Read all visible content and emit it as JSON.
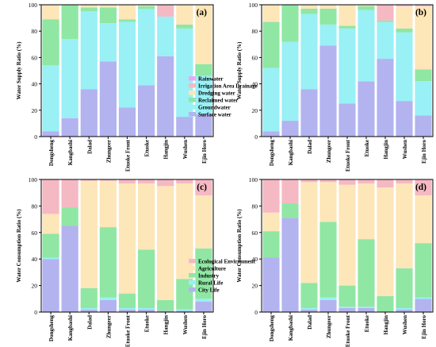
{
  "colors": {
    "surface_water": "#b3b3f0",
    "groundwater": "#99f0f5",
    "reclaimed_water": "#8fe7a3",
    "dredging_water": "#fde6b8",
    "irrigation_drainage": "#f5b9c3",
    "rainwater": "#eca8ee",
    "city_life": "#b3b3f0",
    "rural_life": "#99f0f5",
    "industry": "#8fe7a3",
    "agriculture": "#fde6b8",
    "ecological_environment": "#f5b9c3"
  },
  "chart_data": [
    {
      "type": "bar",
      "stacked": true,
      "panel_label": "(a)",
      "ylabel": "Water Supply Ratio (%)",
      "ylim": [
        0,
        100
      ],
      "yticks": [
        "0",
        "20",
        "40",
        "60",
        "80",
        "100"
      ],
      "categories": [
        "Dongsheng",
        "Kangbashi",
        "Dalad",
        "Zhungeer",
        "Etuoke Front",
        "Etuoke",
        "Hangjin",
        "Wushen",
        "Ejin Horo"
      ],
      "legend_position": "bottom-right",
      "series": [
        {
          "name": "Surface water",
          "color_key": "surface_water",
          "values": [
            4,
            14,
            36,
            57,
            22,
            39,
            61,
            15,
            17
          ]
        },
        {
          "name": "Groundwater",
          "color_key": "groundwater",
          "values": [
            50,
            60,
            59,
            29,
            65,
            58,
            30,
            67,
            29
          ]
        },
        {
          "name": "Reclaimed water",
          "color_key": "reclaimed_water",
          "values": [
            35,
            26,
            3,
            12,
            2,
            2,
            0,
            3,
            9
          ]
        },
        {
          "name": "Dredging water",
          "color_key": "dredging_water",
          "values": [
            11,
            0,
            2,
            2,
            11,
            1,
            0,
            15,
            45
          ]
        },
        {
          "name": "Irrigation Area Drainage",
          "color_key": "irrigation_drainage",
          "values": [
            0,
            0,
            0,
            0,
            0,
            0,
            9,
            0,
            0
          ]
        },
        {
          "name": "Rainwater",
          "color_key": "rainwater",
          "values": [
            0,
            0,
            0,
            0,
            0,
            0,
            0,
            0,
            0
          ]
        }
      ]
    },
    {
      "type": "bar",
      "stacked": true,
      "panel_label": "(b)",
      "ylabel": "Water Supply Ratio (%)",
      "ylim": [
        0,
        100
      ],
      "yticks": [
        "0",
        "20",
        "40",
        "60",
        "80",
        "100"
      ],
      "categories": [
        "Dongsheng",
        "Kangbashi",
        "Dalad",
        "Zhungeer",
        "Etuoke Front",
        "Etuoke",
        "Hangjin",
        "Wushen",
        "Ejin Horo"
      ],
      "series": [
        {
          "name": "Surface water",
          "color_key": "surface_water",
          "values": [
            4,
            12,
            36,
            69,
            25,
            42,
            59,
            27,
            16
          ]
        },
        {
          "name": "Groundwater",
          "color_key": "groundwater",
          "values": [
            48,
            60,
            57,
            16,
            57,
            54,
            28,
            52,
            26
          ]
        },
        {
          "name": "Reclaimed water",
          "color_key": "reclaimed_water",
          "values": [
            35,
            28,
            4,
            12,
            2,
            3,
            1,
            3,
            9
          ]
        },
        {
          "name": "Dredging water",
          "color_key": "dredging_water",
          "values": [
            13,
            0,
            3,
            3,
            16,
            1,
            0,
            17,
            48
          ]
        },
        {
          "name": "Irrigation Area Drainage",
          "color_key": "irrigation_drainage",
          "values": [
            0,
            0,
            0,
            0,
            0,
            0,
            12,
            0,
            0
          ]
        },
        {
          "name": "Rainwater",
          "color_key": "rainwater",
          "values": [
            0,
            0,
            0,
            0,
            0,
            0,
            0,
            1,
            1
          ]
        }
      ]
    },
    {
      "type": "bar",
      "stacked": true,
      "panel_label": "(c)",
      "ylabel": "Water Consumption Ratio (%)",
      "ylim": [
        0,
        100
      ],
      "yticks": [
        "0",
        "20",
        "40",
        "60",
        "80",
        "100"
      ],
      "categories": [
        "Dongsheng",
        "Kangbashi",
        "Dalad",
        "Zhungeer",
        "Etuoke Front",
        "Etuoke",
        "Hangjin",
        "Wushen",
        "Ejin Horo"
      ],
      "legend_position": "bottom-right",
      "series": [
        {
          "name": "City Life",
          "color_key": "city_life",
          "values": [
            40,
            65,
            2,
            9,
            2,
            2,
            1,
            1,
            8
          ]
        },
        {
          "name": "Rural Life",
          "color_key": "rural_life",
          "values": [
            1,
            0,
            1,
            2,
            1,
            1,
            0,
            1,
            2
          ]
        },
        {
          "name": "Industry",
          "color_key": "industry",
          "values": [
            18,
            14,
            15,
            53,
            11,
            44,
            8,
            23,
            38
          ]
        },
        {
          "name": "Agriculture",
          "color_key": "agriculture",
          "values": [
            15,
            0,
            81,
            35,
            83,
            50,
            86,
            72,
            40
          ]
        },
        {
          "name": "Ecological Environment",
          "color_key": "ecological_environment",
          "values": [
            26,
            21,
            1,
            1,
            3,
            3,
            5,
            3,
            12
          ]
        }
      ]
    },
    {
      "type": "bar",
      "stacked": true,
      "panel_label": "(d)",
      "ylabel": "Water Consumption Ratio (%)",
      "ylim": [
        0,
        100
      ],
      "yticks": [
        "0",
        "20",
        "40",
        "60",
        "80",
        "100"
      ],
      "categories": [
        "Dongsheng",
        "Kangbashi",
        "Dalad",
        "Zhungeer",
        "Etuoke Front",
        "Etuoke",
        "Hangjin",
        "Wushen",
        "Ejin Horo"
      ],
      "series": [
        {
          "name": "City Life",
          "color_key": "city_life",
          "values": [
            41,
            71,
            2,
            9,
            3,
            3,
            0,
            2,
            10
          ]
        },
        {
          "name": "Rural Life",
          "color_key": "rural_life",
          "values": [
            0,
            0,
            1,
            2,
            1,
            1,
            0,
            1,
            1
          ]
        },
        {
          "name": "Industry",
          "color_key": "industry",
          "values": [
            20,
            11,
            19,
            57,
            16,
            51,
            12,
            30,
            41
          ]
        },
        {
          "name": "Agriculture",
          "color_key": "agriculture",
          "values": [
            14,
            0,
            76,
            30,
            76,
            42,
            82,
            64,
            36
          ]
        },
        {
          "name": "Ecological Environment",
          "color_key": "ecological_environment",
          "values": [
            25,
            18,
            2,
            2,
            4,
            3,
            6,
            3,
            12
          ]
        }
      ]
    }
  ]
}
